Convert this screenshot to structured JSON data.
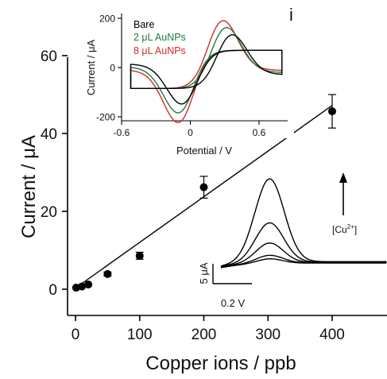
{
  "panel_label": "i",
  "chart_data": [
    {
      "type": "scatter",
      "xlabel": "Copper ions / ppb",
      "ylabel": "Current / μA",
      "xlim": [
        -5,
        490
      ],
      "ylim": [
        -5,
        60
      ],
      "xticks": [
        0,
        100,
        200,
        300,
        400
      ],
      "yticks": [
        0,
        20,
        40,
        60
      ],
      "points": [
        {
          "x": 1,
          "y": 0.4,
          "err": 0
        },
        {
          "x": 10,
          "y": 0.7,
          "err": 0
        },
        {
          "x": 20,
          "y": 1.2,
          "err": 0
        },
        {
          "x": 50,
          "y": 3.9,
          "err": 0.5
        },
        {
          "x": 100,
          "y": 8.6,
          "err": 0.9
        },
        {
          "x": 200,
          "y": 26.2,
          "err": 2.8
        },
        {
          "x": 400,
          "y": 45.7,
          "err": 4.3
        }
      ],
      "fit_line": {
        "x": [
          0,
          400
        ],
        "y": [
          0.3,
          47.2
        ]
      },
      "grid": false,
      "color": "#000000"
    },
    {
      "type": "line",
      "xlabel": "Potential / V",
      "ylabel": "Current / μA",
      "xlim": [
        -0.6,
        0.85
      ],
      "ylim": [
        -210,
        210
      ],
      "xticks": [
        -0.6,
        0,
        0.6
      ],
      "xtick_labels": [
        "-0.6",
        "0",
        "0.6"
      ],
      "yticks": [
        -200,
        0,
        200
      ],
      "legend_position": "top-left",
      "series": [
        {
          "name": "Bare",
          "color": "#000000",
          "anodic_peak": [
            0.36,
            150
          ],
          "cathodic_peak": [
            -0.07,
            -150
          ]
        },
        {
          "name": "2 μL AuNPs",
          "color": "#1e7a3c",
          "anodic_peak": [
            0.31,
            168
          ],
          "cathodic_peak": [
            -0.1,
            -172
          ]
        },
        {
          "name": "8 μL AuNPs",
          "color": "#d42a2a",
          "anodic_peak": [
            0.28,
            185
          ],
          "cathodic_peak": [
            -0.1,
            -196
          ]
        }
      ]
    },
    {
      "type": "line",
      "annotation_arrow_label": "[Cu2+]",
      "scale_bar_y": "5 μA",
      "scale_bar_x": "0.2 V",
      "peak_heights": [
        1.2,
        2.0,
        5.0,
        10.0,
        21.0
      ]
    }
  ]
}
